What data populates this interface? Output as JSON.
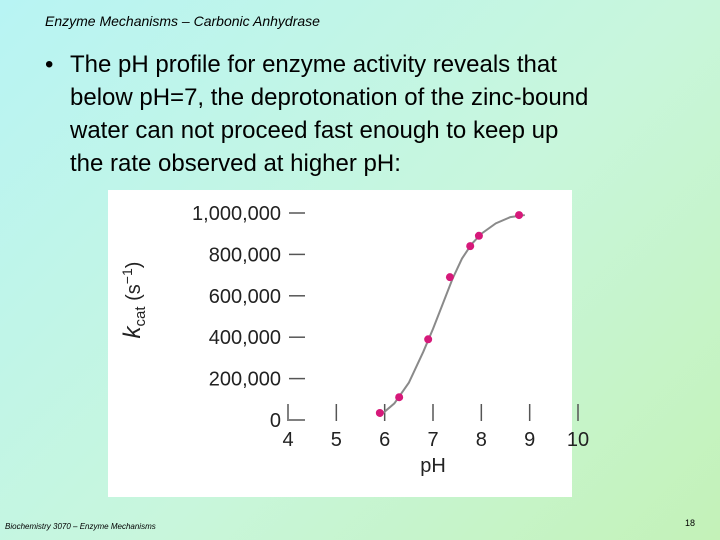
{
  "slide": {
    "header": "Enzyme Mechanisms – Carbonic Anhydrase",
    "bullet": [
      "The pH profile for enzyme activity reveals that",
      "below pH=7, the deprotonation of the zinc-bound",
      "water can not proceed fast enough to keep up",
      "the rate observed at higher pH:"
    ],
    "footer": "Biochemistry 3070 – Enzyme Mechanisms",
    "page_number": "18"
  },
  "chart_data": {
    "type": "scatter",
    "xlabel": "pH",
    "ylabel": [
      "k",
      "cat",
      " (s",
      "−1",
      ")"
    ],
    "x": [
      5.9,
      6.3,
      6.9,
      7.35,
      7.77,
      7.95,
      8.78
    ],
    "values": [
      34000,
      110000,
      390000,
      690000,
      840000,
      890000,
      990000
    ],
    "color": "#d6197a",
    "fit": {
      "x": [
        5.9,
        6.2,
        6.5,
        6.8,
        7.0,
        7.2,
        7.4,
        7.6,
        7.8,
        8.0,
        8.3,
        8.6,
        8.9
      ],
      "values": [
        20000,
        80000,
        180000,
        330000,
        440000,
        560000,
        680000,
        780000,
        850000,
        900000,
        950000,
        980000,
        990000
      ],
      "color": "#8a8a8a"
    },
    "xlim": [
      4,
      10
    ],
    "xticks": [
      4,
      5,
      6,
      7,
      8,
      9,
      10
    ],
    "ylim": [
      0,
      1000000
    ],
    "yticks": [
      0,
      {
        "value": 200000,
        "label": "200,000"
      },
      {
        "value": 400000,
        "label": "400,000"
      },
      {
        "value": 600000,
        "label": "600,000"
      },
      {
        "value": 800000,
        "label": "800,000"
      },
      {
        "value": 1000000,
        "label": "1,000,000"
      }
    ]
  }
}
